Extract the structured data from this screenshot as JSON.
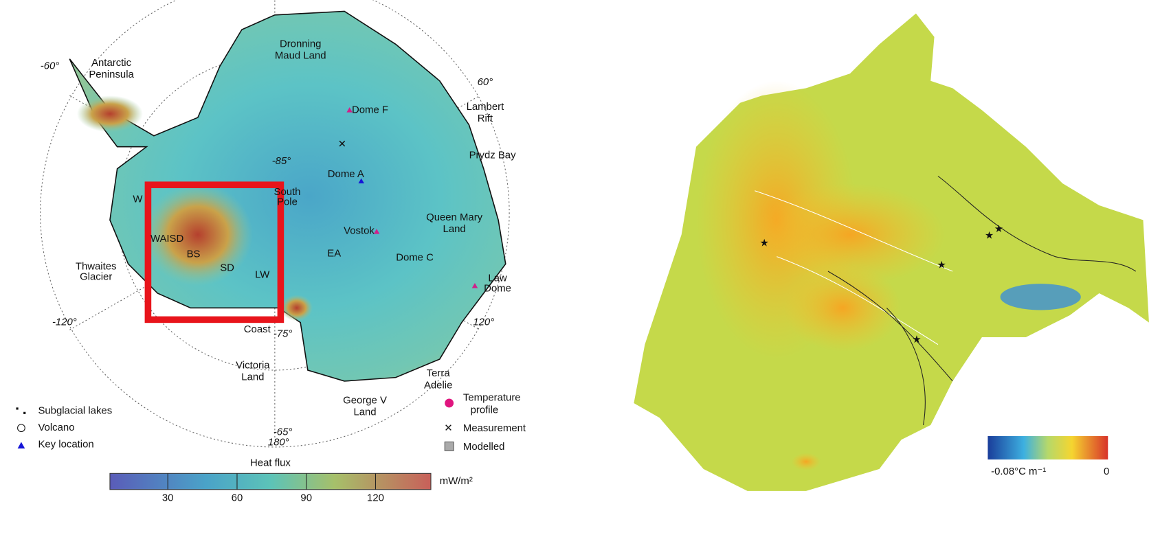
{
  "left_map": {
    "labels": [
      [
        "Antarctic",
        "Peninsula"
      ],
      [
        "Dronning",
        "Maud Land"
      ],
      [
        "Dome F"
      ],
      [
        "Lambert",
        "Rift"
      ],
      [
        "Prydz Bay"
      ],
      [
        "Dome A"
      ],
      [
        "South",
        "Pole"
      ],
      [
        "Queen Mary",
        "Land"
      ],
      [
        "Vostok"
      ],
      [
        "WAISD"
      ],
      [
        "BS"
      ],
      [
        "SD"
      ],
      [
        "LW"
      ],
      [
        "EA"
      ],
      [
        "W"
      ],
      [
        "Dome C"
      ],
      [
        "Law",
        "Dome"
      ],
      [
        "Thwaites",
        "Glacier"
      ],
      [
        "Coast"
      ],
      [
        "Victoria",
        "Land"
      ],
      [
        "George V",
        "Land"
      ],
      [
        "Terra",
        "Adelie"
      ]
    ],
    "graticule": [
      "-60°",
      "60°",
      "-120°",
      "120°",
      "180°",
      "-85°",
      "-75°",
      "-65°"
    ],
    "legend": [
      [
        "Subglacial lakes"
      ],
      [
        "Volcano"
      ],
      [
        "Key location"
      ],
      [
        "Temperature",
        "profile"
      ],
      [
        "Measurement"
      ],
      [
        "Modelled"
      ]
    ],
    "colorbar": {
      "title": "Heat flux",
      "ticks": [
        30,
        60,
        90,
        120
      ],
      "unit": "mW/m²"
    }
  },
  "right_map": {
    "colorbar": {
      "min_label": "-0.08°C m⁻¹",
      "max_label": "0"
    }
  }
}
